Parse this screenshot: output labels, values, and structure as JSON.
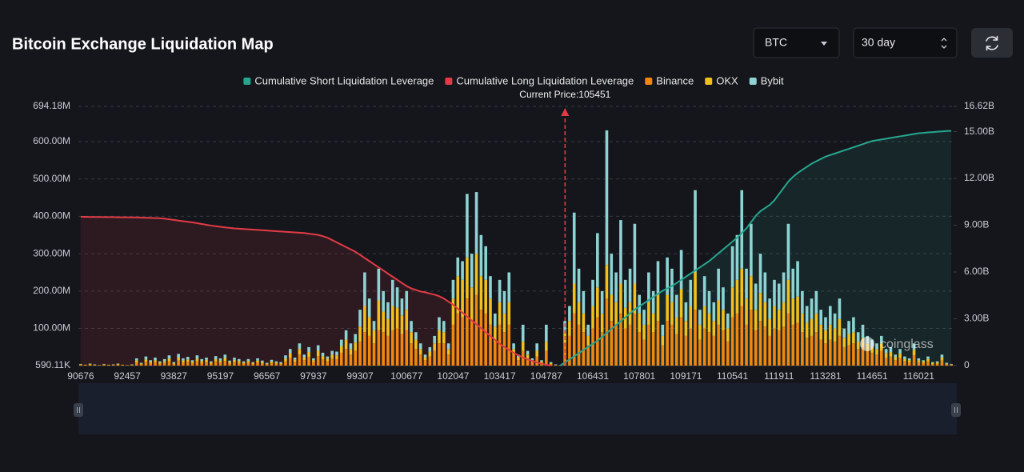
{
  "controls": {
    "symbol": "BTC",
    "range": "30 day"
  },
  "chart_data": {
    "type": "bar",
    "title": "Bitcoin Exchange Liquidation Map",
    "watermark": "coinglass",
    "current_price": {
      "value": 105451,
      "label": "Current Price:105451"
    },
    "grid": true,
    "ylim": [
      0.59011,
      694.18
    ],
    "yticks": [
      {
        "value": 0.59011,
        "label": "590.11K"
      },
      {
        "value": 100,
        "label": "100.00M"
      },
      {
        "value": 200,
        "label": "200.00M"
      },
      {
        "value": 300,
        "label": "300.00M"
      },
      {
        "value": 400,
        "label": "400.00M"
      },
      {
        "value": 500,
        "label": "500.00M"
      },
      {
        "value": 600,
        "label": "600.00M"
      },
      {
        "value": 694.18,
        "label": "694.18M"
      }
    ],
    "y2lim": [
      0,
      16.62
    ],
    "y2ticks": [
      0,
      {
        "value": 3,
        "label": "3.00B"
      },
      {
        "value": 6,
        "label": "6.00B"
      },
      {
        "value": 9,
        "label": "9.00B"
      },
      {
        "value": 12,
        "label": "12.00B"
      },
      {
        "value": 15,
        "label": "15.00B"
      },
      {
        "value": 16.62,
        "label": "16.62B"
      }
    ],
    "categories": [
      90676,
      null,
      null,
      null,
      null,
      null,
      null,
      null,
      null,
      null,
      92457,
      null,
      null,
      null,
      null,
      null,
      null,
      null,
      null,
      null,
      93827,
      null,
      null,
      null,
      null,
      null,
      null,
      null,
      null,
      null,
      95197,
      null,
      null,
      null,
      null,
      null,
      null,
      null,
      null,
      null,
      96567,
      null,
      null,
      null,
      null,
      null,
      null,
      null,
      null,
      null,
      97937,
      null,
      null,
      null,
      null,
      null,
      null,
      null,
      null,
      null,
      99307,
      null,
      null,
      null,
      null,
      null,
      null,
      null,
      null,
      null,
      100677,
      null,
      null,
      null,
      null,
      null,
      null,
      null,
      null,
      null,
      102047,
      null,
      null,
      null,
      null,
      null,
      null,
      null,
      null,
      null,
      103417,
      null,
      null,
      null,
      null,
      null,
      null,
      null,
      null,
      null,
      104787,
      null,
      null,
      null,
      null,
      null,
      null,
      null,
      null,
      null,
      106431,
      null,
      null,
      null,
      null,
      null,
      null,
      null,
      null,
      null,
      107801,
      null,
      null,
      null,
      null,
      null,
      null,
      null,
      null,
      null,
      109171,
      null,
      null,
      null,
      null,
      null,
      null,
      null,
      null,
      null,
      110541,
      null,
      null,
      null,
      null,
      null,
      null,
      null,
      null,
      null,
      111911,
      null,
      null,
      null,
      null,
      null,
      null,
      null,
      null,
      null,
      113281,
      null,
      null,
      null,
      null,
      null,
      null,
      null,
      null,
      null,
      114651,
      null,
      null,
      null,
      null,
      null,
      null,
      null,
      null,
      null,
      116021,
      null,
      null,
      null,
      null,
      null,
      null,
      null
    ],
    "series": [
      {
        "name": "Cumulative Short Liquidation Leverage",
        "type": "line",
        "axis": "y2",
        "color": "#26a68e",
        "values": [
          null,
          null,
          null,
          null,
          null,
          null,
          null,
          null,
          null,
          null,
          null,
          null,
          null,
          null,
          null,
          null,
          null,
          null,
          null,
          null,
          null,
          null,
          null,
          null,
          null,
          null,
          null,
          null,
          null,
          null,
          null,
          null,
          null,
          null,
          null,
          null,
          null,
          null,
          null,
          null,
          null,
          null,
          null,
          null,
          null,
          null,
          null,
          null,
          null,
          null,
          null,
          null,
          null,
          null,
          null,
          null,
          null,
          null,
          null,
          null,
          null,
          null,
          null,
          null,
          null,
          null,
          null,
          null,
          null,
          null,
          null,
          null,
          null,
          null,
          null,
          null,
          null,
          null,
          null,
          null,
          null,
          null,
          null,
          null,
          null,
          null,
          null,
          null,
          null,
          null,
          null,
          null,
          null,
          null,
          null,
          null,
          null,
          null,
          null,
          null,
          null,
          null,
          null,
          0,
          0.2,
          0.4,
          0.6,
          0.8,
          1.0,
          1.2,
          1.4,
          1.6,
          1.85,
          2.1,
          2.35,
          2.6,
          2.85,
          3.1,
          3.35,
          3.6,
          3.8,
          4.0,
          4.2,
          4.4,
          4.6,
          4.8,
          4.95,
          5.1,
          5.3,
          5.5,
          5.7,
          5.9,
          6.1,
          6.3,
          6.5,
          6.7,
          6.95,
          7.2,
          7.45,
          7.7,
          7.95,
          8.2,
          8.5,
          8.8,
          9.2,
          9.6,
          9.9,
          10.1,
          10.3,
          10.6,
          11.0,
          11.4,
          11.8,
          12.1,
          12.35,
          12.55,
          12.75,
          12.95,
          13.1,
          13.25,
          13.4,
          13.5,
          13.6,
          13.7,
          13.8,
          13.9,
          14.0,
          14.1,
          14.2,
          14.3,
          14.4,
          14.45,
          14.5,
          14.55,
          14.6,
          14.65,
          14.7,
          14.75,
          14.8,
          14.85,
          14.9,
          14.92,
          14.95,
          14.97,
          15.0,
          15.02,
          15.04,
          15.05
        ]
      },
      {
        "name": "Cumulative Long Liquidation Leverage",
        "type": "line",
        "axis": "y2",
        "color": "#e23b45",
        "values": [
          9.54,
          9.54,
          9.53,
          9.53,
          9.53,
          9.52,
          9.52,
          9.52,
          9.51,
          9.51,
          9.51,
          9.5,
          9.5,
          9.49,
          9.48,
          9.47,
          9.46,
          9.45,
          9.42,
          9.38,
          9.34,
          9.3,
          9.26,
          9.22,
          9.18,
          9.13,
          9.08,
          9.03,
          8.98,
          8.94,
          8.9,
          8.86,
          8.83,
          8.8,
          8.78,
          8.76,
          8.74,
          8.72,
          8.7,
          8.68,
          8.66,
          8.64,
          8.62,
          8.6,
          8.58,
          8.56,
          8.54,
          8.52,
          8.5,
          8.46,
          8.42,
          8.38,
          8.3,
          8.2,
          8.05,
          7.9,
          7.75,
          7.6,
          7.45,
          7.3,
          7.1,
          6.9,
          6.7,
          6.5,
          6.3,
          6.1,
          5.9,
          5.7,
          5.5,
          5.3,
          5.1,
          4.95,
          4.85,
          4.75,
          4.7,
          4.62,
          4.55,
          4.45,
          4.3,
          4.1,
          3.9,
          3.65,
          3.4,
          3.15,
          2.9,
          2.65,
          2.4,
          2.15,
          1.9,
          1.65,
          1.4,
          1.2,
          1.0,
          0.82,
          0.66,
          0.52,
          0.4,
          0.3,
          0.2,
          0.12,
          0.05,
          0,
          null,
          null,
          null,
          null,
          null,
          null,
          null,
          null,
          null,
          null,
          null,
          null,
          null,
          null,
          null,
          null,
          null,
          null,
          null,
          null,
          null,
          null,
          null,
          null,
          null,
          null,
          null,
          null,
          null,
          null,
          null,
          null,
          null,
          null,
          null,
          null,
          null,
          null,
          null,
          null,
          null,
          null,
          null,
          null,
          null,
          null,
          null,
          null,
          null,
          null,
          null,
          null,
          null,
          null,
          null,
          null,
          null,
          null,
          null,
          null,
          null,
          null,
          null,
          null,
          null,
          null,
          null,
          null,
          null,
          null,
          null,
          null,
          null,
          null,
          null,
          null,
          null,
          null,
          null,
          null,
          null,
          null,
          null,
          null,
          null,
          null
        ]
      },
      {
        "name": "Binance",
        "type": "bar",
        "color": "#f0870f",
        "values": [
          3,
          2,
          3,
          2,
          1,
          3,
          2,
          2,
          3,
          2,
          1,
          2,
          9,
          4,
          11,
          7,
          10,
          6,
          8,
          12,
          5,
          14,
          9,
          11,
          7,
          12,
          8,
          10,
          6,
          12,
          9,
          13,
          6,
          10,
          8,
          6,
          8,
          5,
          9,
          7,
          4,
          7,
          6,
          5,
          12,
          22,
          11,
          30,
          15,
          24,
          10,
          26,
          17,
          12,
          20,
          18,
          35,
          45,
          30,
          40,
          65,
          90,
          80,
          60,
          95,
          90,
          80,
          95,
          100,
          85,
          95,
          60,
          45,
          30,
          15,
          25,
          40,
          60,
          60,
          30,
          110,
          140,
          130,
          180,
          120,
          190,
          150,
          140,
          110,
          65,
          110,
          90,
          110,
          30,
          15,
          40,
          20,
          10,
          25,
          8,
          40,
          5,
          2,
          1,
          60,
          80,
          140,
          110,
          90,
          55,
          100,
          130,
          90,
          180,
          120,
          110,
          140,
          100,
          110,
          140,
          90,
          70,
          110,
          90,
          120,
          55,
          120,
          110,
          85,
          130,
          80,
          100,
          150,
          70,
          100,
          90,
          80,
          110,
          95,
          65,
          130,
          140,
          160,
          110,
          150,
          95,
          120,
          105,
          80,
          100,
          95,
          105,
          140,
          110,
          115,
          90,
          75,
          80,
          90,
          70,
          60,
          70,
          65,
          80,
          50,
          55,
          60,
          45,
          50,
          40,
          35,
          30,
          40,
          22,
          25,
          15,
          22,
          12,
          10,
          28,
          10,
          8,
          12,
          5,
          6,
          14,
          4,
          3
        ]
      },
      {
        "name": "OKX",
        "type": "bar",
        "color": "#f2c01c",
        "values": [
          1,
          1,
          2,
          1,
          1,
          1,
          1,
          1,
          2,
          1,
          1,
          1,
          5,
          2,
          6,
          4,
          5,
          3,
          4,
          7,
          2,
          8,
          5,
          6,
          4,
          7,
          5,
          6,
          3,
          6,
          5,
          8,
          4,
          6,
          5,
          3,
          5,
          3,
          5,
          3,
          2,
          4,
          3,
          2,
          7,
          12,
          6,
          15,
          8,
          13,
          5,
          14,
          9,
          7,
          10,
          10,
          18,
          25,
          15,
          22,
          40,
          70,
          50,
          35,
          80,
          55,
          45,
          65,
          55,
          50,
          55,
          30,
          25,
          15,
          8,
          13,
          20,
          35,
          30,
          15,
          70,
          100,
          100,
          110,
          90,
          110,
          90,
          90,
          70,
          40,
          60,
          50,
          60,
          15,
          8,
          25,
          10,
          5,
          15,
          4,
          25,
          2,
          1,
          1,
          30,
          40,
          80,
          60,
          50,
          25,
          60,
          80,
          50,
          90,
          70,
          60,
          80,
          55,
          60,
          80,
          50,
          40,
          60,
          50,
          70,
          25,
          70,
          60,
          45,
          75,
          40,
          60,
          100,
          40,
          60,
          50,
          40,
          65,
          55,
          35,
          80,
          90,
          100,
          70,
          90,
          55,
          75,
          65,
          45,
          60,
          55,
          65,
          90,
          70,
          70,
          50,
          40,
          45,
          50,
          40,
          35,
          40,
          35,
          45,
          25,
          30,
          30,
          20,
          25,
          20,
          15,
          15,
          20,
          12,
          12,
          8,
          11,
          7,
          5,
          15,
          5,
          4,
          6,
          3,
          3,
          8,
          2,
          1
        ]
      },
      {
        "name": "Bybit",
        "type": "bar",
        "color": "#8ed3d3",
        "values": [
          1,
          0,
          1,
          1,
          0,
          1,
          0,
          1,
          1,
          0,
          0,
          1,
          6,
          2,
          8,
          4,
          7,
          3,
          6,
          9,
          3,
          10,
          6,
          7,
          4,
          9,
          5,
          6,
          3,
          8,
          6,
          9,
          4,
          6,
          5,
          3,
          5,
          2,
          6,
          4,
          2,
          5,
          3,
          3,
          9,
          11,
          5,
          15,
          7,
          13,
          5,
          15,
          9,
          6,
          10,
          10,
          17,
          25,
          15,
          23,
          45,
          90,
          50,
          25,
          85,
          55,
          45,
          70,
          55,
          45,
          50,
          30,
          20,
          15,
          7,
          12,
          20,
          35,
          30,
          15,
          50,
          50,
          50,
          170,
          90,
          165,
          110,
          90,
          60,
          35,
          60,
          60,
          80,
          15,
          7,
          45,
          10,
          5,
          20,
          3,
          45,
          3,
          1,
          0,
          30,
          40,
          190,
          90,
          60,
          30,
          70,
          145,
          60,
          360,
          110,
          80,
          170,
          75,
          90,
          160,
          50,
          40,
          80,
          60,
          90,
          30,
          100,
          90,
          60,
          105,
          50,
          70,
          220,
          40,
          80,
          60,
          50,
          85,
          60,
          40,
          110,
          120,
          210,
          80,
          140,
          70,
          105,
          80,
          55,
          70,
          70,
          80,
          150,
          80,
          95,
          60,
          45,
          55,
          60,
          40,
          35,
          50,
          40,
          55,
          25,
          35,
          40,
          25,
          35,
          20,
          20,
          15,
          20,
          11,
          13,
          7,
          12,
          6,
          5,
          17,
          5,
          3,
          7,
          2,
          3,
          8,
          2,
          1
        ]
      }
    ]
  }
}
